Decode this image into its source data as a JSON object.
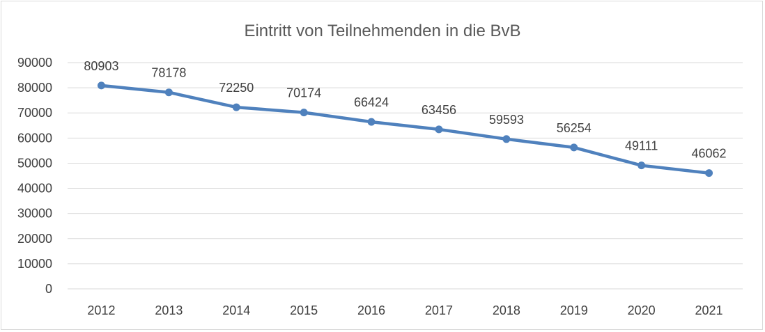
{
  "chart_data": {
    "type": "line",
    "title": "Eintritt von Teilnehmenden in die BvB",
    "xlabel": "",
    "ylabel": "",
    "categories": [
      "2012",
      "2013",
      "2014",
      "2015",
      "2016",
      "2017",
      "2018",
      "2019",
      "2020",
      "2021"
    ],
    "series": [
      {
        "values": [
          80903,
          78178,
          72250,
          70174,
          66424,
          63456,
          59593,
          56254,
          49111,
          46062
        ]
      }
    ],
    "data_labels": [
      "80903",
      "78178",
      "72250",
      "70174",
      "66424",
      "63456",
      "59593",
      "56254",
      "49111",
      "46062"
    ],
    "ylim": [
      0,
      90000
    ],
    "yticks": [
      0,
      10000,
      20000,
      30000,
      40000,
      50000,
      60000,
      70000,
      80000,
      90000
    ],
    "ytick_labels": [
      "0",
      "10000",
      "20000",
      "30000",
      "40000",
      "50000",
      "60000",
      "70000",
      "80000",
      "90000"
    ],
    "grid": true,
    "legend": "none",
    "line_color": "#4f81bd"
  }
}
